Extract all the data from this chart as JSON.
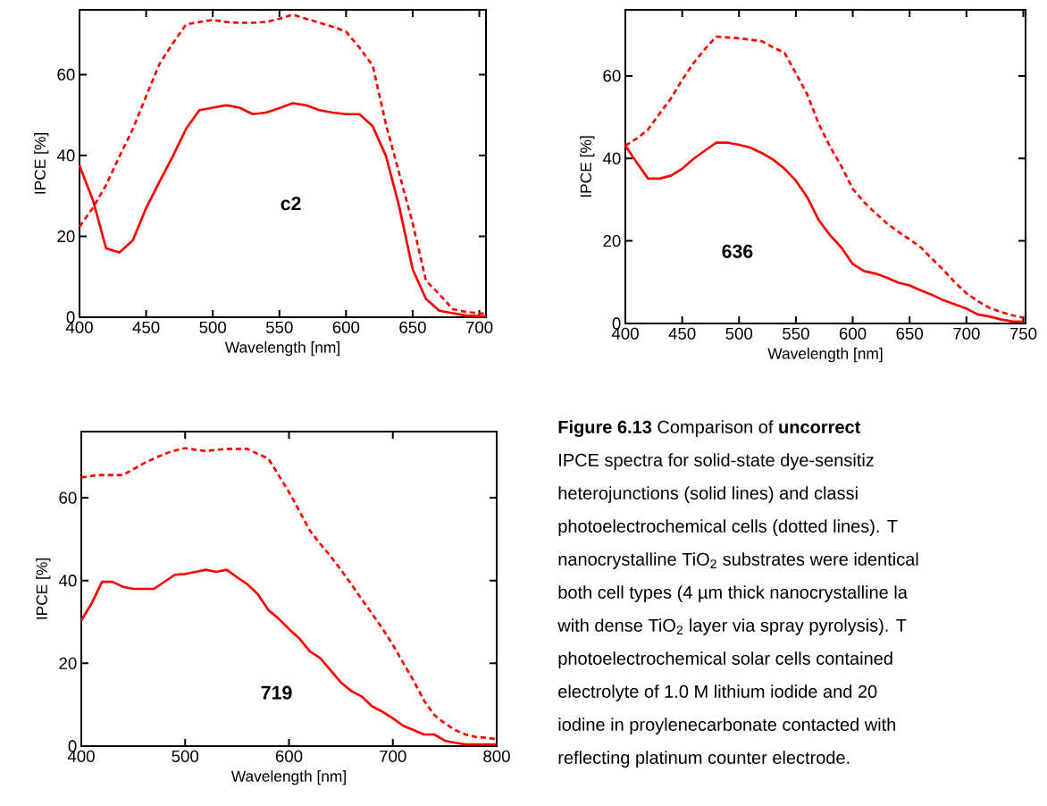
{
  "chart_data": [
    {
      "type": "line",
      "xlabel": "Wavelength [nm]",
      "ylabel": "IPCE [%]",
      "xlim": [
        400,
        705
      ],
      "ylim": [
        0,
        76
      ],
      "xticks": [
        400,
        450,
        500,
        550,
        600,
        650,
        700
      ],
      "yticks": [
        0,
        20,
        40,
        60
      ],
      "annotations": [
        "c2"
      ],
      "series": [
        {
          "color": "#ff0000",
          "line_style": "solid",
          "x": [
            400,
            410,
            420,
            430,
            440,
            450,
            460,
            470,
            480,
            490,
            500,
            510,
            520,
            530,
            540,
            550,
            560,
            570,
            580,
            590,
            600,
            610,
            620,
            630,
            640,
            650,
            660,
            670,
            680,
            690,
            705
          ],
          "values": [
            37.5,
            29,
            17,
            16,
            19,
            27,
            33.5,
            39.8,
            46.6,
            51.2,
            51.8,
            52.4,
            51.8,
            50.2,
            50.6,
            51.7,
            52.9,
            52.4,
            51.2,
            50.6,
            50.2,
            50.2,
            47.2,
            39.8,
            27.2,
            11.8,
            4.5,
            1.6,
            1.0,
            0.4,
            0.2
          ]
        },
        {
          "color": "#ff0000",
          "line_style": "dashed",
          "x": [
            400,
            410,
            420,
            430,
            440,
            450,
            460,
            470,
            480,
            490,
            500,
            510,
            520,
            530,
            540,
            550,
            560,
            570,
            580,
            590,
            600,
            610,
            620,
            630,
            640,
            650,
            660,
            670,
            680,
            690,
            705
          ],
          "values": [
            22.4,
            27,
            32.7,
            39.8,
            46.5,
            54.7,
            62.6,
            67.7,
            72.4,
            73,
            73.5,
            73,
            72.8,
            72.8,
            73,
            73.8,
            74.8,
            73.8,
            72.8,
            71.8,
            70.6,
            66.7,
            62.2,
            47.6,
            35.4,
            23.2,
            9,
            5.7,
            2,
            1.3,
            0.8
          ]
        }
      ]
    },
    {
      "type": "line",
      "xlabel": "Wavelength [nm]",
      "ylabel": "IPCE [%]",
      "xlim": [
        400,
        752
      ],
      "ylim": [
        0,
        76
      ],
      "xticks": [
        400,
        450,
        500,
        550,
        600,
        650,
        700,
        750
      ],
      "yticks": [
        0,
        20,
        40,
        60
      ],
      "annotations": [
        "636"
      ],
      "series": [
        {
          "color": "#ff0000",
          "line_style": "solid",
          "x": [
            400,
            410,
            420,
            430,
            440,
            450,
            460,
            470,
            480,
            490,
            500,
            510,
            520,
            530,
            540,
            550,
            560,
            570,
            580,
            590,
            600,
            610,
            620,
            630,
            640,
            650,
            660,
            670,
            680,
            690,
            700,
            710,
            720,
            730,
            740,
            750
          ],
          "values": [
            43.1,
            39,
            35.1,
            35.1,
            35.8,
            37.5,
            39.9,
            41.9,
            43.8,
            43.8,
            43.3,
            42.6,
            41.3,
            39.7,
            37.5,
            34.6,
            30.6,
            25.1,
            21.4,
            18.4,
            14.4,
            12.7,
            12.1,
            11.1,
            9.9,
            9.2,
            8,
            6.9,
            5.6,
            4.6,
            3.6,
            2.2,
            1.7,
            1.0,
            0.5,
            0.4
          ]
        },
        {
          "color": "#ff0000",
          "line_style": "dashed",
          "x": [
            400,
            410,
            420,
            430,
            440,
            450,
            460,
            470,
            480,
            490,
            500,
            520,
            530,
            540,
            550,
            560,
            570,
            580,
            590,
            600,
            610,
            620,
            630,
            640,
            650,
            660,
            670,
            680,
            690,
            700,
            710,
            720,
            730,
            740,
            750
          ],
          "values": [
            43.1,
            44.8,
            47,
            50.8,
            54.5,
            59,
            63.1,
            66.5,
            69.5,
            69.3,
            69.1,
            68.4,
            66.9,
            65.6,
            60.6,
            55.5,
            48.4,
            42.9,
            38.1,
            32.6,
            29.4,
            26.7,
            24.3,
            22.2,
            20.4,
            18.4,
            15.6,
            12.9,
            9.9,
            7.3,
            5.4,
            3.8,
            2.8,
            2.0,
            1.4
          ]
        }
      ]
    },
    {
      "type": "line",
      "xlabel": "Wavelength [nm]",
      "ylabel": "IPCE [%]",
      "xlim": [
        400,
        800
      ],
      "ylim": [
        0,
        76
      ],
      "xticks": [
        400,
        500,
        600,
        700,
        800
      ],
      "yticks": [
        0,
        20,
        40,
        60
      ],
      "annotations": [
        "719"
      ],
      "series": [
        {
          "color": "#ff0000",
          "line_style": "solid",
          "x": [
            400,
            410,
            420,
            430,
            440,
            450,
            460,
            470,
            480,
            490,
            500,
            510,
            520,
            530,
            540,
            550,
            560,
            570,
            580,
            590,
            600,
            610,
            620,
            630,
            640,
            650,
            660,
            670,
            680,
            690,
            700,
            710,
            720,
            730,
            740,
            750,
            760,
            770,
            780,
            790,
            800
          ],
          "values": [
            30.4,
            34.5,
            39.7,
            39.7,
            38.5,
            38,
            38,
            38,
            39.7,
            41.4,
            41.6,
            42.1,
            42.6,
            42.1,
            42.6,
            40.8,
            39.1,
            36.7,
            32.9,
            30.8,
            28.3,
            26,
            22.9,
            21.3,
            18.3,
            15.4,
            13.3,
            12,
            9.6,
            8.3,
            6.7,
            4.9,
            3.9,
            2.8,
            2.8,
            1.3,
            0.8,
            0.4,
            0.4,
            0.4,
            0.4
          ]
        },
        {
          "color": "#ff0000",
          "line_style": "dashed",
          "x": [
            400,
            415,
            430,
            440,
            450,
            460,
            470,
            480,
            490,
            500,
            510,
            520,
            530,
            540,
            560,
            570,
            580,
            590,
            600,
            610,
            620,
            630,
            640,
            650,
            660,
            670,
            680,
            690,
            700,
            710,
            720,
            730,
            740,
            750,
            760,
            770,
            780,
            790,
            800
          ],
          "values": [
            64.9,
            65.5,
            65.5,
            65.5,
            66.9,
            68.3,
            69.5,
            70.6,
            71.4,
            72,
            71.6,
            71.3,
            71.6,
            71.8,
            71.8,
            70.6,
            69.5,
            65.5,
            61.4,
            56.8,
            52.1,
            48.9,
            45.9,
            42.6,
            39.1,
            35.5,
            32,
            28.4,
            24.5,
            20.1,
            15.8,
            11,
            7.5,
            5.5,
            3.9,
            2.8,
            2.2,
            2,
            1.7
          ]
        }
      ]
    },
    {
      "type": "other",
      "annotations": [
        "**Figure 6.13** Comparison of **uncorrect**",
        "IPCE spectra for solid-state dye-sensitiz",
        "heterojunctions (solid lines) and classi",
        "photoelectrochemical cells (dotted lines). T",
        "nanocrystalline TiO$_{2}$ substrates were identical",
        "both cell types (4 µm thick nanocrystalline la",
        "with dense TiO$_{2}$ layer via spray pyrolysis). T",
        "photoelectrochemical solar cells contained",
        "electrolyte of 1.0 M lithium iodide and 20",
        "iodine in proylenecarbonate contacted with",
        "reflecting platinum counter electrode."
      ]
    }
  ]
}
